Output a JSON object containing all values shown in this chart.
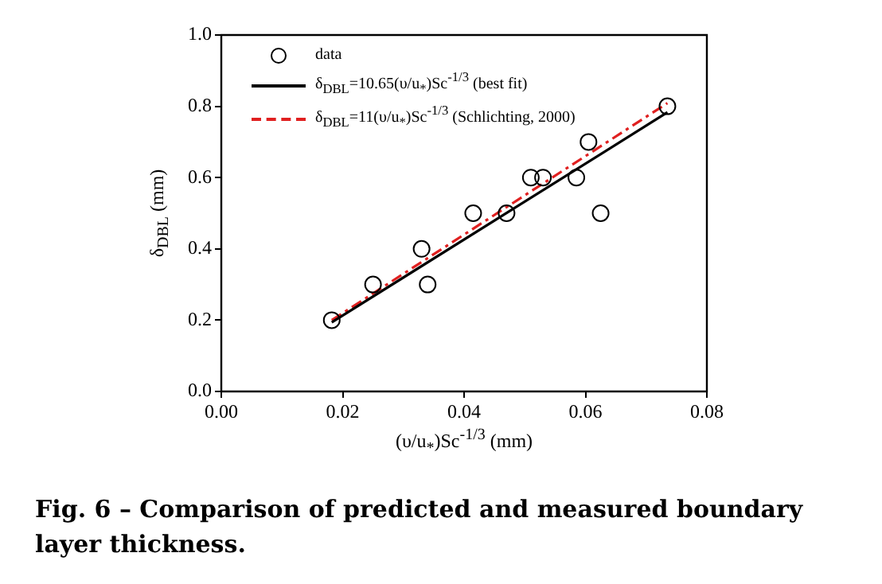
{
  "chart_data": {
    "type": "scatter",
    "xlabel": "(υ/u$_{*}$)Sc$^{-1/3}$ (mm)",
    "ylabel": "δ$_{DBL}$ (mm)",
    "xlim": [
      0,
      0.08
    ],
    "xticks": [
      {
        "value": 0,
        "label": "0.00"
      },
      {
        "value": 0.02,
        "label": "0.02"
      },
      {
        "value": 0.04,
        "label": "0.04"
      },
      {
        "value": 0.06,
        "label": "0.06"
      },
      {
        "value": 0.08,
        "label": "0.08"
      }
    ],
    "ylim": [
      0,
      1
    ],
    "yticks": [
      {
        "value": 0,
        "label": "0.0"
      },
      {
        "value": 0.2,
        "label": "0.2"
      },
      {
        "value": 0.4,
        "label": "0.4"
      },
      {
        "value": 0.6,
        "label": "0.6"
      },
      {
        "value": 0.8,
        "label": "0.8"
      },
      {
        "value": 1,
        "label": "1.0"
      }
    ],
    "grid": false,
    "legend": "top left",
    "series": [
      {
        "name": "data",
        "marker": "circle",
        "color": "#000000",
        "x": [
          0.0182,
          0.025,
          0.033,
          0.034,
          0.0415,
          0.047,
          0.051,
          0.053,
          0.0585,
          0.0605,
          0.0625,
          0.0735
        ],
        "values": [
          0.2,
          0.3,
          0.4,
          0.3,
          0.5,
          0.5,
          0.6,
          0.6,
          0.6,
          0.7,
          0.5,
          0.8
        ]
      },
      {
        "name": "δ$_{DBL}$=10.65(υ/u$_{*}$)Sc$^{-1/3}$ (best fit)",
        "type": "line",
        "marker": "none",
        "line_style": "solid",
        "color": "#000000",
        "x": [
          0.0182,
          0.0735
        ],
        "values": [
          0.194,
          0.783
        ]
      },
      {
        "name": "δ$_{DBL}$=11(υ/u$_{*}$)Sc$^{-1/3}$ (Schlichting, 2000)",
        "type": "line",
        "marker": "none",
        "line_style": "dashed",
        "color": "#e02020",
        "x": [
          0.0182,
          0.0735
        ],
        "values": [
          0.2,
          0.809
        ]
      }
    ],
    "annotations": [
      "Fig. 6 – Comparison of predicted and measured boundary layer thickness."
    ]
  }
}
